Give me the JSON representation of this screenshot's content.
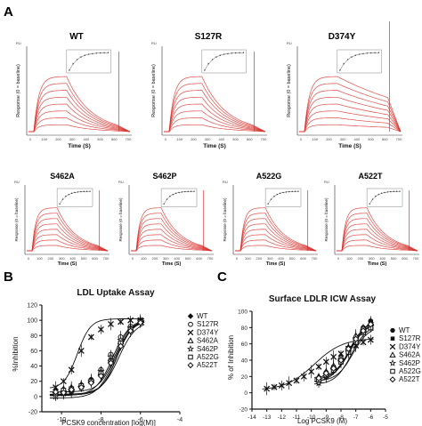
{
  "panels": {
    "a": "A",
    "b": "B",
    "c": "C"
  },
  "spr": {
    "titles": [
      "WT",
      "S127R",
      "D374Y",
      "S462A",
      "S462P",
      "A522G",
      "A522T"
    ],
    "ru_label": "RU",
    "y_label": "Response (0 = baseline)",
    "x_label": "Time (S)"
  },
  "chart_data": [
    {
      "type": "line",
      "title": "LDL Uptake Assay",
      "xlabel": "PCSK9 concentration [log(M)]",
      "ylabel": "%Inhibition",
      "xlim": [
        -11,
        -4
      ],
      "ylim": [
        -20,
        120
      ],
      "xticks": [
        -10,
        -8,
        -6,
        -4
      ],
      "yticks": [
        -20,
        0,
        20,
        40,
        60,
        80,
        100,
        120
      ],
      "legend_position": "right",
      "series": [
        {
          "name": "WT",
          "marker": "filled-diamond",
          "ec50": -7.2,
          "hill": 1.1,
          "x": [
            -10.3,
            -9.9,
            -9.5,
            -9.0,
            -8.5,
            -8.0,
            -7.5,
            -7.0,
            -6.5,
            -6.0
          ],
          "y": [
            5,
            4,
            6,
            12,
            18,
            28,
            45,
            70,
            90,
            100
          ]
        },
        {
          "name": "S127R",
          "marker": "open-circle",
          "ec50": -7.4,
          "hill": 1.0,
          "x": [
            -10.3,
            -9.9,
            -9.5,
            -9.0,
            -8.5,
            -8.0,
            -7.5,
            -7.0,
            -6.5,
            -6.0
          ],
          "y": [
            3,
            6,
            8,
            14,
            22,
            35,
            55,
            78,
            92,
            100
          ]
        },
        {
          "name": "D374Y",
          "marker": "x",
          "ec50": -9.2,
          "hill": 1.3,
          "x": [
            -10.3,
            -9.9,
            -9.5,
            -9.0,
            -8.5,
            -8.0,
            -7.5,
            -7.0,
            -6.5,
            -6.0
          ],
          "y": [
            12,
            20,
            35,
            60,
            78,
            88,
            95,
            98,
            100,
            100
          ]
        },
        {
          "name": "S462A",
          "marker": "open-triangle",
          "ec50": -7.3,
          "hill": 1.1,
          "x": [
            -10.3,
            -9.9,
            -9.5,
            -9.0,
            -8.5,
            -8.0,
            -7.5,
            -7.0,
            -6.5,
            -6.0
          ],
          "y": [
            8,
            10,
            12,
            16,
            22,
            32,
            50,
            72,
            90,
            98
          ]
        },
        {
          "name": "S462P",
          "marker": "open-star",
          "ec50": -7.3,
          "hill": 1.0,
          "x": [
            -10.3,
            -9.9,
            -9.5,
            -9.0,
            -8.5,
            -8.0,
            -7.5,
            -7.0,
            -6.5,
            -6.0
          ],
          "y": [
            0,
            4,
            7,
            12,
            20,
            33,
            52,
            74,
            90,
            99
          ]
        },
        {
          "name": "A522G",
          "marker": "open-square",
          "ec50": -7.2,
          "hill": 1.1,
          "x": [
            -10.3,
            -9.9,
            -9.5,
            -9.0,
            -8.5,
            -8.0,
            -7.5,
            -7.0,
            -6.5,
            -6.0
          ],
          "y": [
            4,
            8,
            10,
            14,
            20,
            30,
            46,
            70,
            88,
            98
          ]
        },
        {
          "name": "A522T",
          "marker": "open-diamond",
          "ec50": -7.1,
          "hill": 1.0,
          "x": [
            -10.3,
            -9.9,
            -9.5,
            -9.0,
            -8.5,
            -8.0,
            -7.5,
            -7.0,
            -6.5,
            -6.0
          ],
          "y": [
            6,
            5,
            9,
            12,
            18,
            27,
            44,
            66,
            86,
            97
          ]
        }
      ]
    },
    {
      "type": "line",
      "title": "Surface LDLR ICW Assay",
      "xlabel": "Log PCSK9 (M)",
      "ylabel": "% of Inhibition",
      "xlim": [
        -14,
        -5
      ],
      "ylim": [
        -20,
        100
      ],
      "xticks": [
        -14,
        -13,
        -12,
        -11,
        -10,
        -9,
        -8,
        -7,
        -6,
        -5
      ],
      "yticks": [
        -20,
        0,
        20,
        40,
        60,
        80,
        100
      ],
      "legend_position": "right",
      "series": [
        {
          "name": "WT",
          "marker": "filled-circle",
          "ec50": -7.4,
          "hill": 0.8,
          "x": [
            -9.5,
            -9.0,
            -8.5,
            -8.0,
            -7.5,
            -7.0,
            -6.5,
            -6.0
          ],
          "y": [
            18,
            25,
            32,
            42,
            55,
            68,
            80,
            88
          ]
        },
        {
          "name": "S127R",
          "marker": "filled-square",
          "ec50": -7.5,
          "hill": 0.8,
          "x": [
            -9.5,
            -9.0,
            -8.5,
            -8.0,
            -7.5,
            -7.0,
            -6.5,
            -6.0
          ],
          "y": [
            15,
            22,
            30,
            40,
            52,
            66,
            78,
            86
          ]
        },
        {
          "name": "D374Y",
          "marker": "x",
          "ec50": -9.8,
          "hill": 0.45,
          "x": [
            -13.0,
            -12.5,
            -12.0,
            -11.5,
            -11.0,
            -10.5,
            -10.0,
            -9.5,
            -9.0,
            -8.5,
            -8.0,
            -7.5,
            -7.0,
            -6.5,
            -6.0
          ],
          "y": [
            5,
            7,
            9,
            12,
            15,
            20,
            26,
            32,
            38,
            44,
            48,
            54,
            58,
            62,
            65
          ]
        },
        {
          "name": "S462A",
          "marker": "open-triangle",
          "ec50": -7.4,
          "hill": 0.8,
          "x": [
            -9.5,
            -9.0,
            -8.5,
            -8.0,
            -7.5,
            -7.0,
            -6.5,
            -6.0
          ],
          "y": [
            20,
            26,
            33,
            44,
            56,
            70,
            80,
            85
          ]
        },
        {
          "name": "S462P",
          "marker": "open-star",
          "ec50": -7.3,
          "hill": 0.8,
          "x": [
            -9.5,
            -9.0,
            -8.5,
            -8.0,
            -7.5,
            -7.0,
            -6.5,
            -6.0
          ],
          "y": [
            12,
            20,
            28,
            38,
            50,
            62,
            74,
            82
          ]
        },
        {
          "name": "A522G",
          "marker": "open-square",
          "ec50": -7.2,
          "hill": 0.8,
          "x": [
            -9.5,
            -9.0,
            -8.5,
            -8.0,
            -7.5,
            -7.0,
            -6.5,
            -6.0
          ],
          "y": [
            16,
            22,
            28,
            38,
            50,
            62,
            74,
            80
          ]
        },
        {
          "name": "A522T",
          "marker": "open-diamond",
          "ec50": -7.4,
          "hill": 0.8,
          "x": [
            -9.5,
            -9.0,
            -8.5,
            -8.0,
            -7.5,
            -7.0,
            -6.5,
            -6.0
          ],
          "y": [
            18,
            24,
            30,
            40,
            54,
            66,
            76,
            84
          ]
        }
      ]
    }
  ]
}
